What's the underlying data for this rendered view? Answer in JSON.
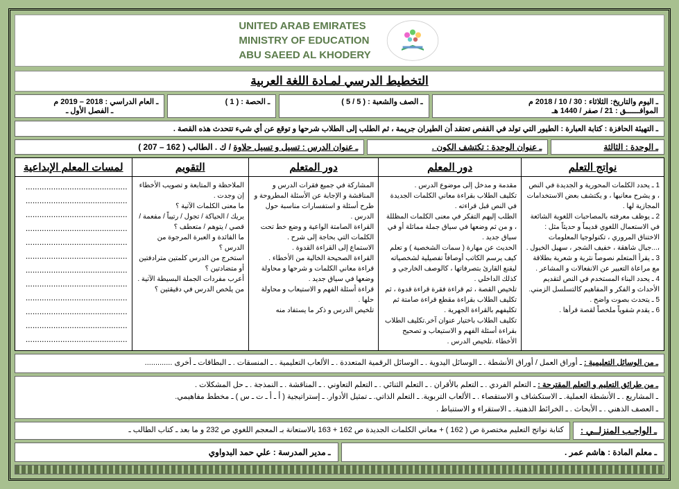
{
  "ministry": {
    "line1": "UNITED ARAB EMIRATES",
    "line2": "MINISTRY OF EDUCATION",
    "line3": "ABU SAEED AL KHODERY"
  },
  "title": "التخطيط الدرسي لمـادة اللغة العربية",
  "info": {
    "date": "ـ اليوم والتاريخ:   الثلاثاء : 30 / 10 /  2018 م",
    "hijri": "الموافــــــق :        21 / صفر /  1440 هـ",
    "class": "ـ الصف والشعبة : ( 5 / 5   )",
    "period": "ـ الحصة : ( 1 )",
    "year": "ـ العام الدراسي : 2018 – 2019 م",
    "semester": "ـ الفصل الأول ـ"
  },
  "warmup": "ـ التهيئة الحافزة : كتابة العبارة : الطيور التي تولد في القفص تعتقد أن الطيران جريمة ، ثم الطلب إلى الطلاب شرحها و توقع عن أي شيء تتحدث هذه القصة .",
  "lesson": {
    "unit": "ـ الوحدة : الثالثة ",
    "unit_title": "ـ عنوان الوحدة : تكتشف الكون .",
    "lesson_title": "ـ عنوان الدرس :   تسيل و تسيل حلاوة",
    "book": "/ ك . الطالب ( 162 – 207 )"
  },
  "table": {
    "headers": [
      "نواتج التعلم",
      "دور المعلم",
      "دور المتعلم",
      "التقويم",
      "لمسات المعلم الإبداعية"
    ],
    "col1": "1 ـ يحدد الكلمات المحورية و الجديدة في النص ، و يشرح معانيها ، و يكتشف بعض الاستخدامات المجازية لها .\n2 ـ يوظف معرفته بالمصاحبات اللغوية الشائعة في الاستعمال اللغوي قديماً و حديثاً مثل : الاختناق المروري ، تكنولوجيا المعلومات ،...جبال شاهقة ، خفيف الشجر ، سهيل الخيول .\n3 ـ يقرأ المتعلم نصوصاً نثرية و شعرية بطلاقة مع مراعاة التعبير عن الانفعالات و المشاعر .\n4 ـ يحدد البناء المستخدم في النص لتقديم الأحداث و الفكر و المفاهيم كالتسلسل الزمني.\n5 ـ يتحدث بصوت واضح .\n6 ـ يقدم شفوياً ملخصاً لقصة قرأها .",
    "col2": "مقدمة و مدخل إلى موضوع الدرس .\nتكليف الطلاب بقراءة معاني الكلمات الجديدة في النص قبل قراءته .\nالطلب إليهم التفكر في معنى الكلمات المظللة ، و من ثم وضعها في سياق جملة مماثلة أو في سياق جديد .\nالحديث عن مهارة ( سمات الشخصية ) و تعلم كيف يرسم الكاتب أوصافاً تفصيلية لشخصياته ليقنع القارئ بتصرفاتها ، كالوصف الخارجي و كذلك الداخلي .\nتلخيص القصة ، ثم قراءة فقرة قراءة قدوة ، ثم تكليف الطلاب بقراءة مقطع قراءة صامتة ثم تكليفهم بالقراءة الجهرية .\nتكليف الطلاب باختيار عنوان آخر.تكليف الطلاب بقراءة أسئلة الفهم و الاستيعاب و تصحيح الأخطاء .تلخيص الدرس .",
    "col3": "المشاركة في جميع فقرات الدرس و المناقشة و الإجابة عن الأسئلة المطروحة و طرح أسئلة و استفسارات مناسبة حول الدرس .\nالقراءة الصامتة الواعية و وضع خط تحت الكلمات التي بحاجة إلى شرح .\nالاستماع إلى القراءة القدوة .\nالقراءة الصحيحة الخالية من الأخطاء .\nقراءة معاني الكلمات و شرحها و محاولة وضعها في سياق جديد .\nقراءة أسئلة الفهم و الاستيعاب و محاولة حلها .\nتلخيص الدرس و ذكر ما يستفاد منه",
    "col4": "الملاحظة و المتابعة و تصويب الأخطاء إن وجدت .\n\nما معنى الكلمات الآتية ؟\nيريك / الحياكة / تجول / رتيباً / مفعمة / قصي / يتوهم / متعطف ؟\nما الفائدة و العبرة المرجوة من الدرس ؟\nاستخرج من الدرس كلمتين مترادفتين أو متضادتين ؟\nأعرب مفردات الجملة البسيطة الآتية .\nمن يلخص الدرس في دقيقتين ؟",
    "col5": "............................................\n............................................\n............................................\n............................................\n............................................\n............................................\n............................................\n............................................\n............................................\n............................................\n............................................\n............................................"
  },
  "resources": {
    "label": "ـ من الوسائل التعليمية :",
    "text": "ـ أوراق العمل / أوراق الأنشطة .  ـ الوسائل اليدوية .   ـ الوسائل الرقمية المتعددة .  ـ الألعاب التعليمية .  ـ المنسقات .   ـ البطاقات  ـ أخرى ............."
  },
  "methods": {
    "label": "ـ من طرائق التعليم و التعلم المقترحة :",
    "line1": "ـ التعلم الفردي .   ـ التعلم بالأقران .   ـ التعلم الثنائي .   ـ التعلم التعاوني .  ـ المناقشة .    ـ النمذجة .    ـ حل المشكلات .",
    "line2": "ـ المشاريع .    ـ الأنشطة العملية.  ـ الاستكشاف و الاستقصاء .     ـ الألعاب التربوية.   ـ التعلم الذاتي.    ـ تمثيل الأدوار.   ـ إستراتيجية ( أ ـ أ ـ ت ـ س )  ـ مخطط مفاهيمي.",
    "line3": "ـ العصف الذهني .  ـ الأبحاث .   ـ الخرائط الذهنية.            ـ الاستقراء و الاستنباط ."
  },
  "homework": {
    "label": "ـ الواجـب المنزلــي :",
    "text": "كتابة نواتج التعليم مختصرة ص ( 162 )  + معاني الكلمات الجديدة ص 162 + 163 بالاستعانة بـ المعجم اللغوي ص 232  و ما بعد ـ كتاب الطالب ـ"
  },
  "signatures": {
    "teacher": "ـ معلم المادة : هاشم عمر .",
    "principal": "ـ مدير المدرسة :     علي حمد البدواوي"
  }
}
